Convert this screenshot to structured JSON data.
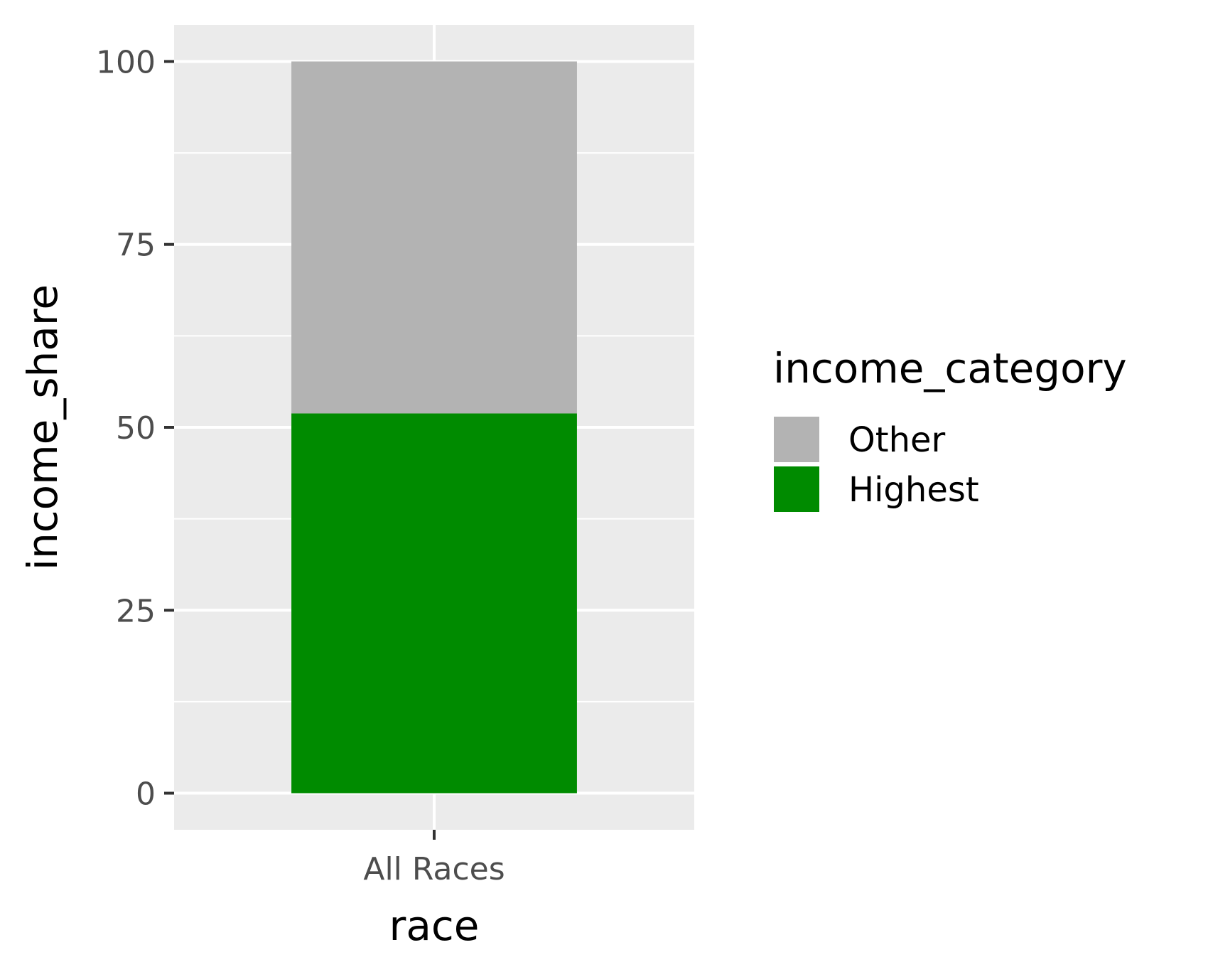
{
  "chart_data": {
    "type": "bar",
    "stacked": true,
    "categories": [
      "All Races"
    ],
    "series": [
      {
        "name": "Highest",
        "values": [
          51.9
        ],
        "color": "#008B00"
      },
      {
        "name": "Other",
        "values": [
          48.1
        ],
        "color": "#B3B3B3"
      }
    ],
    "xlabel": "race",
    "ylabel": "income_share",
    "ylim": [
      -5,
      105
    ],
    "yticks": [
      0,
      25,
      50,
      75,
      100
    ],
    "legend": {
      "title": "income_category",
      "placement": "right",
      "entries": [
        {
          "label": "Other",
          "color": "#B3B3B3"
        },
        {
          "label": "Highest",
          "color": "#008B00"
        }
      ]
    },
    "grid": true,
    "panel_background": "#EBEBEB"
  }
}
